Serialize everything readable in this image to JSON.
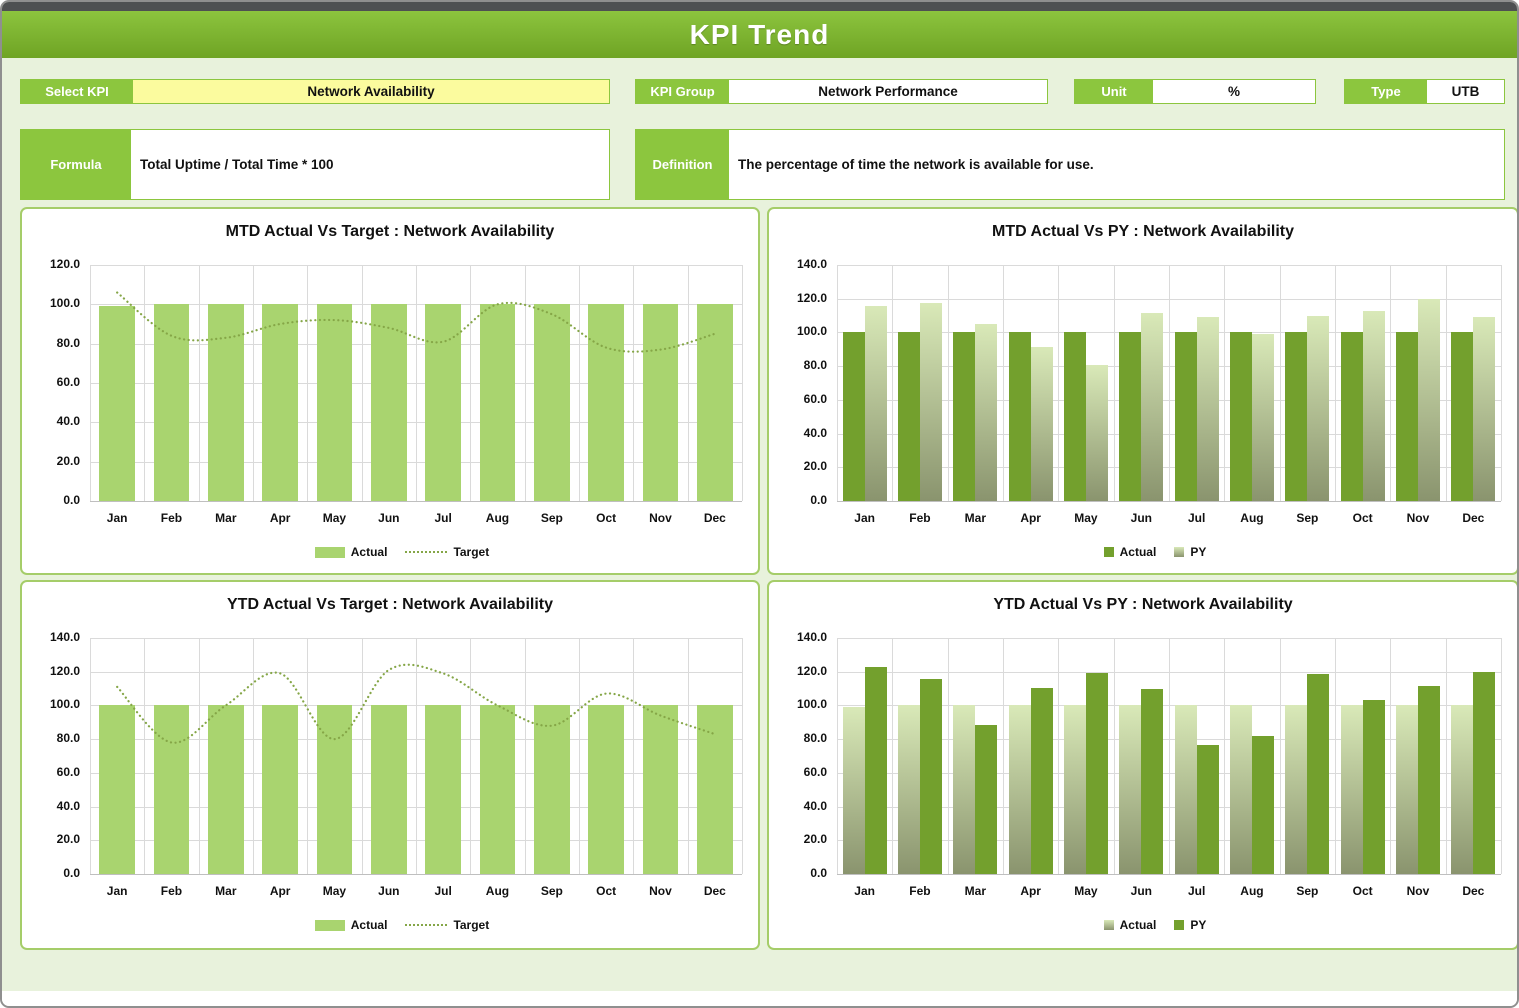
{
  "header": {
    "title": "KPI Trend"
  },
  "filters": {
    "select_kpi": {
      "label": "Select KPI",
      "value": "Network Availability"
    },
    "kpi_group": {
      "label": "KPI Group",
      "value": "Network Performance"
    },
    "unit": {
      "label": "Unit",
      "value": "%"
    },
    "type": {
      "label": "Type",
      "value": "UTB"
    },
    "formula": {
      "label": "Formula",
      "value": "Total Uptime / Total Time * 100"
    },
    "definition": {
      "label": "Definition",
      "value": "The percentage of time the network is available for use."
    }
  },
  "colors": {
    "header_green_top": "#8CC43E",
    "header_green_bottom": "#6FA424",
    "label_green": "#8CC63E",
    "panel_border": "#A5CD69",
    "page_bg": "#E8F2DC",
    "select_value_bg": "#FBFB9E",
    "bar_light": "#A9D46F",
    "bar_dark": "#73A02D",
    "bar_gradient_top": "#D9E9B8",
    "bar_gradient_bottom": "#8A946E",
    "target_line": "#85A647",
    "grid": "#DADADA",
    "axis_line": "#BFBFBF"
  },
  "chart_data": [
    {
      "id": "mtd-actual-vs-target",
      "type": "bar+line",
      "title": "MTD Actual Vs Target : Network Availability",
      "categories": [
        "Jan",
        "Feb",
        "Mar",
        "Apr",
        "May",
        "Jun",
        "Jul",
        "Aug",
        "Sep",
        "Oct",
        "Nov",
        "Dec"
      ],
      "xlabel": "",
      "ylabel": "",
      "ylim": [
        0,
        120
      ],
      "ytick_step": 20,
      "grid": true,
      "legend_position": "bottom",
      "series": [
        {
          "name": "Actual",
          "render": "bar",
          "style": "solid-light",
          "values": [
            99,
            100,
            100,
            100,
            100,
            100,
            100,
            100,
            100,
            100,
            100,
            100
          ]
        },
        {
          "name": "Target",
          "render": "line",
          "style": "dotted",
          "values": [
            106,
            84,
            83,
            90,
            92,
            88,
            81,
            100,
            95,
            78,
            77,
            85
          ]
        }
      ]
    },
    {
      "id": "mtd-actual-vs-py",
      "type": "bar",
      "title": "MTD Actual Vs PY : Network Availability",
      "categories": [
        "Jan",
        "Feb",
        "Mar",
        "Apr",
        "May",
        "Jun",
        "Jul",
        "Aug",
        "Sep",
        "Oct",
        "Nov",
        "Dec"
      ],
      "xlabel": "",
      "ylabel": "",
      "ylim": [
        0,
        140
      ],
      "ytick_step": 20,
      "grid": true,
      "legend_position": "bottom",
      "series": [
        {
          "name": "Actual",
          "render": "bar",
          "style": "solid-dark",
          "values": [
            100,
            100,
            100,
            100,
            100,
            100,
            100,
            100,
            100,
            100,
            100,
            100
          ]
        },
        {
          "name": "PY",
          "render": "bar",
          "style": "gradient",
          "values": [
            115.5,
            117.5,
            105,
            91.5,
            80.5,
            111.5,
            109,
            99,
            110,
            112.5,
            120,
            109
          ]
        }
      ]
    },
    {
      "id": "ytd-actual-vs-target",
      "type": "bar+line",
      "title": "YTD Actual Vs Target : Network Availability",
      "categories": [
        "Jan",
        "Feb",
        "Mar",
        "Apr",
        "May",
        "Jun",
        "Jul",
        "Aug",
        "Sep",
        "Oct",
        "Nov",
        "Dec"
      ],
      "xlabel": "",
      "ylabel": "",
      "ylim": [
        0,
        140
      ],
      "ytick_step": 20,
      "grid": true,
      "legend_position": "bottom",
      "series": [
        {
          "name": "Actual",
          "render": "bar",
          "style": "solid-light",
          "values": [
            100,
            100,
            100,
            100,
            100,
            100,
            100,
            100,
            100,
            100,
            100,
            100
          ]
        },
        {
          "name": "Target",
          "render": "line",
          "style": "dotted",
          "values": [
            111,
            78,
            100,
            119,
            80,
            121,
            119,
            100,
            88,
            107,
            94,
            83
          ]
        }
      ]
    },
    {
      "id": "ytd-actual-vs-py",
      "type": "bar",
      "title": "YTD Actual Vs PY : Network Availability",
      "categories": [
        "Jan",
        "Feb",
        "Mar",
        "Apr",
        "May",
        "Jun",
        "Jul",
        "Aug",
        "Sep",
        "Oct",
        "Nov",
        "Dec"
      ],
      "xlabel": "",
      "ylabel": "",
      "ylim": [
        0,
        140
      ],
      "ytick_step": 20,
      "grid": true,
      "legend_position": "bottom",
      "series": [
        {
          "name": "Actual",
          "render": "bar",
          "style": "gradient",
          "values": [
            99,
            100,
            100,
            100,
            100,
            100,
            100,
            100,
            100,
            100,
            100,
            100
          ]
        },
        {
          "name": "PY",
          "render": "bar",
          "style": "solid-dark",
          "values": [
            123,
            115.5,
            88.5,
            110.5,
            119.5,
            110,
            76.5,
            82,
            118.5,
            103,
            111.5,
            120
          ]
        }
      ]
    }
  ]
}
